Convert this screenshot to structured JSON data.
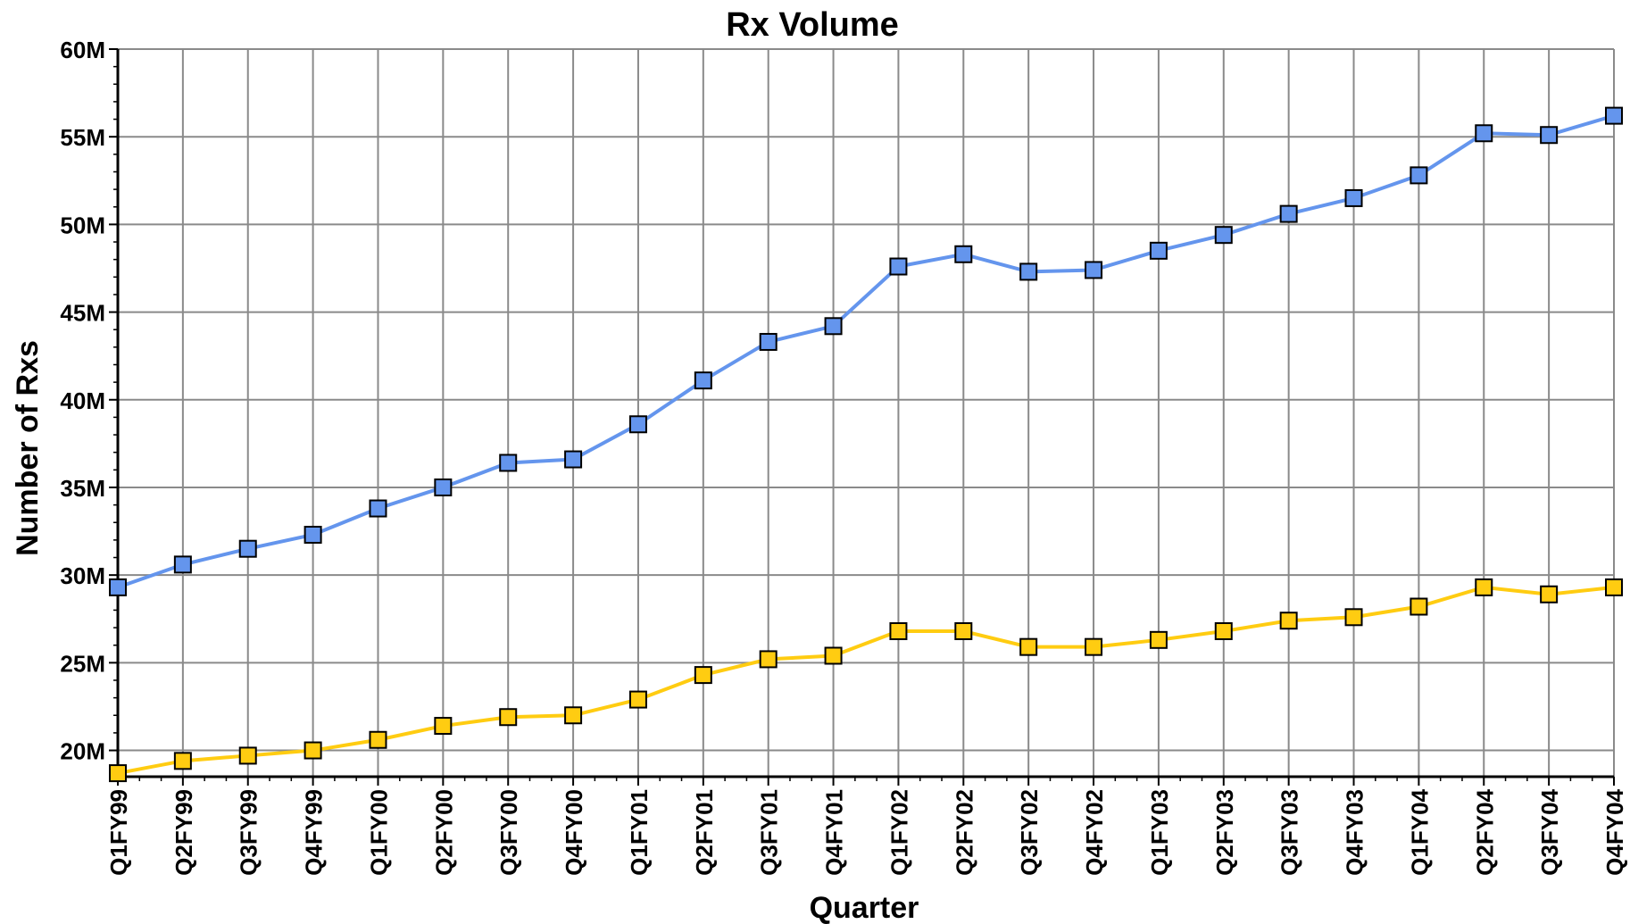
{
  "chart_data": {
    "type": "line",
    "title": "Rx Volume",
    "xlabel": "Quarter",
    "ylabel": "Number of Rxs",
    "ylim": [
      18.5,
      60
    ],
    "yticks": [
      20,
      25,
      30,
      35,
      40,
      45,
      50,
      55,
      60
    ],
    "ytick_labels": [
      "20M",
      "25M",
      "30M",
      "35M",
      "40M",
      "45M",
      "50M",
      "55M",
      "60M"
    ],
    "grid": true,
    "categories": [
      "Q1FY99",
      "Q2FY99",
      "Q3FY99",
      "Q4FY99",
      "Q1FY00",
      "Q2FY00",
      "Q3FY00",
      "Q4FY00",
      "Q1FY01",
      "Q2FY01",
      "Q3FY01",
      "Q4FY01",
      "Q1FY02",
      "Q2FY02",
      "Q3FY02",
      "Q4FY02",
      "Q1FY03",
      "Q2FY03",
      "Q3FY03",
      "Q4FY03",
      "Q1FY04",
      "Q2FY04",
      "Q3FY04",
      "Q4FY04"
    ],
    "series": [
      {
        "color": "#6495ed",
        "values": [
          29.3,
          30.6,
          31.5,
          32.3,
          33.8,
          35.0,
          36.4,
          36.6,
          38.6,
          41.1,
          43.3,
          44.2,
          47.6,
          48.3,
          47.3,
          47.4,
          48.5,
          49.4,
          50.6,
          51.5,
          52.8,
          55.2,
          55.1,
          56.2
        ]
      },
      {
        "color": "#ffcc11",
        "values": [
          18.7,
          19.4,
          19.7,
          20.0,
          20.6,
          21.4,
          21.9,
          22.0,
          22.9,
          24.3,
          25.2,
          25.4,
          26.8,
          26.8,
          25.9,
          25.9,
          26.3,
          26.8,
          27.4,
          27.6,
          28.2,
          29.3,
          28.9,
          29.3
        ]
      }
    ]
  }
}
